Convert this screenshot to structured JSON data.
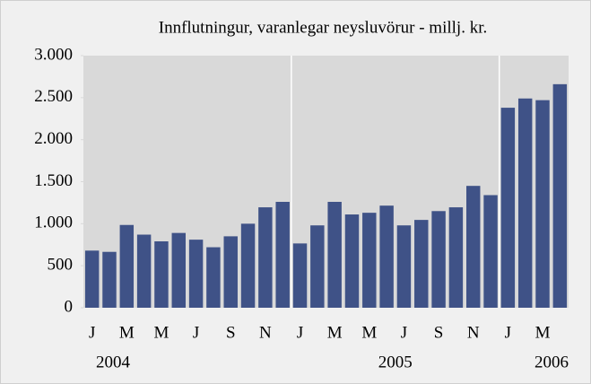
{
  "chart_data": {
    "type": "bar",
    "title": "Innflutningur, varanlegar neysluvörur - millj. kr.",
    "categories": [
      "J",
      null,
      "M",
      null,
      "M",
      null,
      "J",
      null,
      "S",
      null,
      "N",
      null,
      "J",
      null,
      "M",
      null,
      "M",
      null,
      "J",
      null,
      "S",
      null,
      "N",
      null,
      "J",
      null,
      "M",
      null
    ],
    "groups": [
      {
        "label": "2004",
        "count": 12
      },
      {
        "label": "2005",
        "count": 12
      },
      {
        "label": "2006",
        "count": 4
      }
    ],
    "values": [
      680,
      665,
      985,
      870,
      790,
      890,
      810,
      720,
      850,
      1000,
      1195,
      1260,
      765,
      980,
      1260,
      1110,
      1130,
      1215,
      980,
      1045,
      1150,
      1195,
      1450,
      1340,
      2380,
      2490,
      2470,
      2660
    ],
    "color": "#3f5287",
    "ylim": [
      0,
      3000
    ],
    "yticks": [
      0,
      500,
      {
        "value": 1000,
        "label": "1.000"
      },
      {
        "value": 1500,
        "label": "1.500"
      },
      {
        "value": 2000,
        "label": "2.000"
      },
      {
        "value": 2500,
        "label": "2.500"
      },
      {
        "value": 3000,
        "label": "3.000"
      }
    ]
  }
}
